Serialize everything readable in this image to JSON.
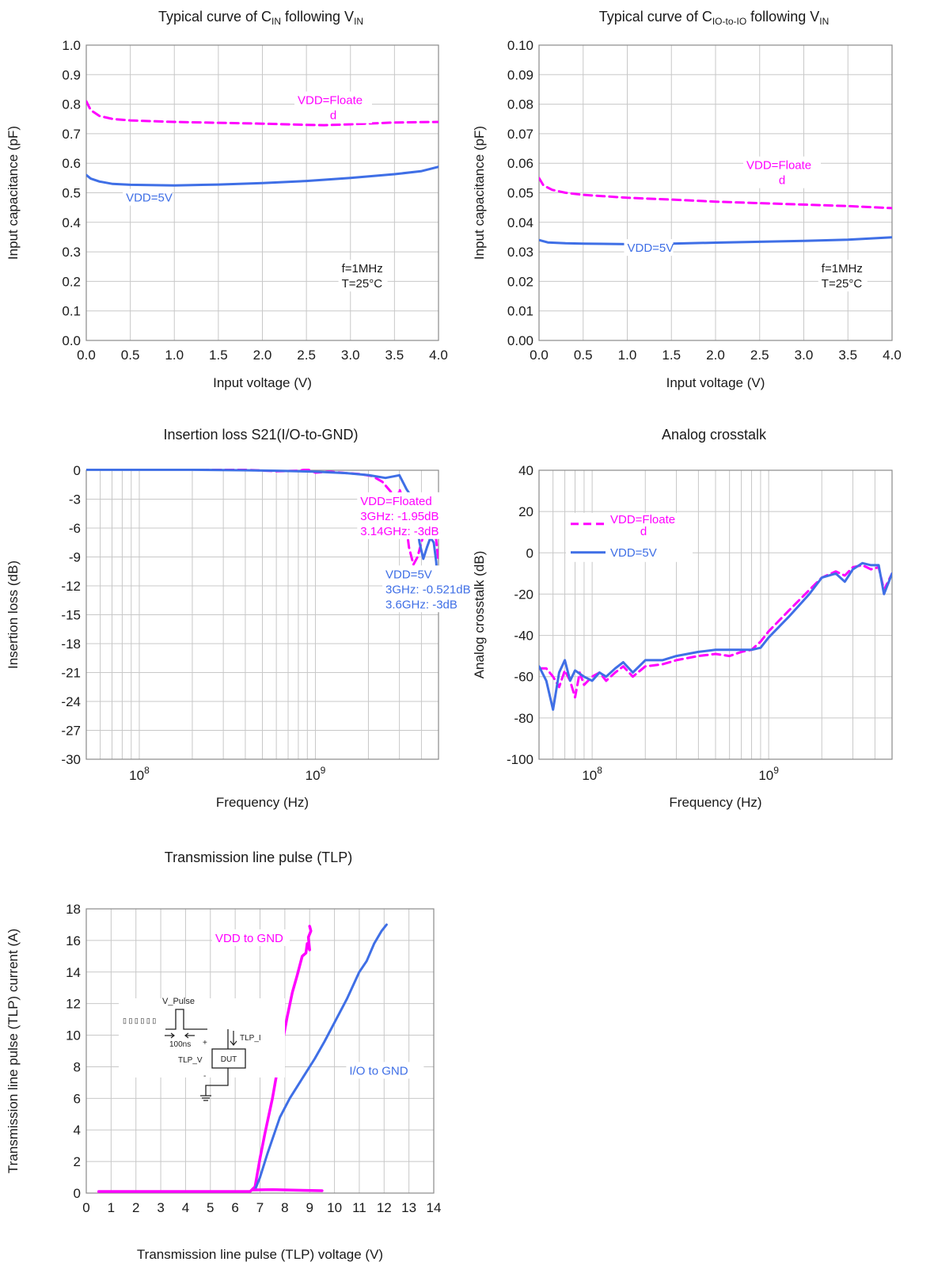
{
  "colors": {
    "magenta": "#ff00ff",
    "blue": "#3f6fe6",
    "grid": "#c8c8c8",
    "axis": "#8a8a8a",
    "text": "#1a1a1a"
  },
  "chart_data": [
    {
      "type": "line",
      "title": "Typical curve of  C",
      "title_sub": "IN",
      "title_tail": " following V",
      "title_sub2": "IN",
      "xlabel": "Input voltage (V)",
      "ylabel": "Input capacitance (pF)",
      "xlim": [
        0,
        4
      ],
      "ylim": [
        0,
        1
      ],
      "xticks": [
        "0.0",
        "0.5",
        "1.0",
        "1.5",
        "2.0",
        "2.5",
        "3.0",
        "3.5",
        "4.0"
      ],
      "yticks": [
        "0.0",
        "0.1",
        "0.2",
        "0.3",
        "0.4",
        "0.5",
        "0.6",
        "0.7",
        "0.8",
        "0.9",
        "1.0"
      ],
      "grid": true,
      "series": [
        {
          "name": "VDD=Floated",
          "color": "magenta",
          "dash": true,
          "x": [
            0,
            0.05,
            0.15,
            0.3,
            0.5,
            1.0,
            1.5,
            2.0,
            2.5,
            2.7,
            3.0,
            3.5,
            4.0
          ],
          "y": [
            0.81,
            0.78,
            0.76,
            0.75,
            0.745,
            0.74,
            0.737,
            0.734,
            0.73,
            0.729,
            0.732,
            0.738,
            0.74
          ]
        },
        {
          "name": "VDD=5V",
          "color": "blue",
          "dash": false,
          "x": [
            0,
            0.05,
            0.15,
            0.3,
            0.5,
            1.0,
            1.5,
            2.0,
            2.5,
            3.0,
            3.5,
            3.8,
            4.0
          ],
          "y": [
            0.56,
            0.548,
            0.538,
            0.53,
            0.527,
            0.525,
            0.528,
            0.533,
            0.54,
            0.55,
            0.563,
            0.573,
            0.588
          ]
        }
      ],
      "annotations": [
        {
          "lines": [
            "VDD=Floate",
            "d"
          ],
          "color": "magenta",
          "x": 2.4,
          "y": 0.8
        },
        {
          "lines": [
            "VDD=5V"
          ],
          "color": "blue",
          "x": 0.45,
          "y": 0.47
        },
        {
          "lines": [
            "f=1MHz",
            "T=25°C"
          ],
          "color": "text",
          "x": 2.9,
          "y": 0.23
        }
      ]
    },
    {
      "type": "line",
      "title": "Typical curve of C",
      "title_sub": "IO-to-IO",
      "title_tail": " following V",
      "title_sub2": "IN",
      "xlabel": "Input voltage (V)",
      "ylabel": "Input capacitance (pF)",
      "xlim": [
        0,
        4
      ],
      "ylim": [
        0,
        0.1
      ],
      "xticks": [
        "0.0",
        "0.5",
        "1.0",
        "1.5",
        "2.0",
        "2.5",
        "3.0",
        "3.5",
        "4.0"
      ],
      "yticks": [
        "0.00",
        "0.01",
        "0.02",
        "0.03",
        "0.04",
        "0.05",
        "0.06",
        "0.07",
        "0.08",
        "0.09",
        "0.10"
      ],
      "grid": true,
      "series": [
        {
          "name": "VDD=Floated",
          "color": "magenta",
          "dash": true,
          "x": [
            0,
            0.05,
            0.15,
            0.3,
            0.5,
            1.0,
            1.5,
            2.0,
            2.5,
            3.0,
            3.5,
            4.0
          ],
          "y": [
            0.055,
            0.0525,
            0.051,
            0.05,
            0.0493,
            0.0483,
            0.0477,
            0.047,
            0.0465,
            0.046,
            0.0455,
            0.0448
          ]
        },
        {
          "name": "VDD=5V",
          "color": "blue",
          "dash": false,
          "x": [
            0,
            0.1,
            0.3,
            0.5,
            1.0,
            1.5,
            2.0,
            2.5,
            3.0,
            3.5,
            4.0
          ],
          "y": [
            0.034,
            0.0332,
            0.0329,
            0.0328,
            0.0326,
            0.0328,
            0.0331,
            0.0334,
            0.0337,
            0.0341,
            0.0349
          ]
        }
      ],
      "annotations": [
        {
          "lines": [
            "VDD=Floate",
            "d"
          ],
          "color": "magenta",
          "x": 2.35,
          "y": 0.058
        },
        {
          "lines": [
            "VDD=5V"
          ],
          "color": "blue",
          "x": 1.0,
          "y": 0.03
        },
        {
          "lines": [
            "f=1MHz",
            "T=25°C"
          ],
          "color": "text",
          "x": 3.2,
          "y": 0.023
        }
      ]
    },
    {
      "type": "line",
      "title": "Insertion loss S21(I/O-to-GND)",
      "xlabel": "Frequency (Hz)",
      "ylabel": "Insertion loss (dB)",
      "xscale": "log",
      "xlim": [
        50000000.0,
        5000000000.0
      ],
      "ylim": [
        -30,
        0
      ],
      "xticks_log": [
        {
          "value": 100000000.0,
          "base": "10",
          "exp": "8"
        },
        {
          "value": 1000000000.0,
          "base": "10",
          "exp": "9"
        }
      ],
      "yticks": [
        "0",
        "-3",
        "-6",
        "-9",
        "-12",
        "-15",
        "-18",
        "-21",
        "-24",
        "-27",
        "-30"
      ],
      "yvalues": [
        0,
        -3,
        -6,
        -9,
        -12,
        -15,
        -18,
        -21,
        -24,
        -27,
        -30
      ],
      "grid": true,
      "series": [
        {
          "name": "VDD=Floated",
          "color": "magenta",
          "dash": true,
          "x": [
            50000000.0,
            100000000.0,
            200000000.0,
            400000000.0,
            600000000.0,
            800000000.0,
            900000000.0,
            1000000000.0,
            1200000000.0,
            1500000000.0,
            1800000000.0,
            2100000000.0,
            2400000000.0,
            2700000000.0,
            2900000000.0,
            3000000000.0,
            3140000000.0,
            3400000000.0,
            3600000000.0,
            3800000000.0,
            4000000000.0,
            4200000000.0,
            4400000000.0,
            4600000000.0,
            4800000000.0,
            5000000000.0
          ],
          "y": [
            0.1,
            0.1,
            0.1,
            0.05,
            -0.1,
            -0.05,
            0.1,
            -0.25,
            -0.15,
            -0.3,
            -0.4,
            -0.6,
            -1.2,
            -2.3,
            -3.5,
            -1.95,
            -3,
            -8.0,
            -9.8,
            -9.0,
            -7.5,
            -6.0,
            -4.2,
            -4.0,
            -6.5,
            -9.5
          ]
        },
        {
          "name": "VDD=5V",
          "color": "blue",
          "dash": false,
          "x": [
            50000000.0,
            100000000.0,
            200000000.0,
            400000000.0,
            600000000.0,
            800000000.0,
            1000000000.0,
            1500000000.0,
            2000000000.0,
            2500000000.0,
            3000000000.0,
            3300000000.0,
            3600000000.0,
            3900000000.0,
            4100000000.0,
            4300000000.0,
            4500000000.0,
            4700000000.0,
            4850000000.0,
            5000000000.0
          ],
          "y": [
            0.05,
            0.05,
            0.05,
            0.0,
            -0.05,
            -0.1,
            -0.15,
            -0.3,
            -0.5,
            -0.8,
            -0.521,
            -2.0,
            -3.0,
            -7.5,
            -9.2,
            -8.0,
            -7.0,
            -7.5,
            -9.5,
            -13.0
          ]
        }
      ],
      "annotations": [
        {
          "lines": [
            "VDD=Floated",
            "3GHz: -1.95dB",
            "3.14GHz: -3dB"
          ],
          "color": "magenta",
          "x": 1800000000.0,
          "y": -3.6
        },
        {
          "lines": [
            "VDD=5V",
            "3GHz: -0.521dB",
            "3.6GHz: -3dB"
          ],
          "color": "blue",
          "x": 2500000000.0,
          "y": -11.2
        }
      ]
    },
    {
      "type": "line",
      "title": "Analog crosstalk",
      "xlabel": "Frequency (Hz)",
      "ylabel": "Analog crosstalk (dB)",
      "xscale": "log",
      "xlim": [
        50000000.0,
        5000000000.0
      ],
      "ylim": [
        -100,
        40
      ],
      "xticks_log": [
        {
          "value": 100000000.0,
          "base": "10",
          "exp": "8"
        },
        {
          "value": 1000000000.0,
          "base": "10",
          "exp": "9"
        }
      ],
      "yticks": [
        "40",
        "20",
        "0",
        "-20",
        "-40",
        "-60",
        "-80",
        "-100"
      ],
      "yvalues": [
        40,
        20,
        0,
        -20,
        -40,
        -60,
        -80,
        -100
      ],
      "grid": true,
      "legend": {
        "position": "upper-left",
        "entries": [
          {
            "lines": [
              "VDD=Floate",
              "d"
            ],
            "color": "magenta",
            "dash": true
          },
          {
            "lines": [
              "VDD=5V"
            ],
            "color": "blue",
            "dash": false
          }
        ]
      },
      "series": [
        {
          "name": "VDD=Floated",
          "color": "magenta",
          "dash": true,
          "x": [
            50000000.0,
            55000000.0,
            60000000.0,
            65000000.0,
            70000000.0,
            75000000.0,
            80000000.0,
            85000000.0,
            90000000.0,
            100000000.0,
            110000000.0,
            120000000.0,
            135000000.0,
            150000000.0,
            170000000.0,
            200000000.0,
            250000000.0,
            300000000.0,
            400000000.0,
            500000000.0,
            600000000.0,
            700000000.0,
            800000000.0,
            900000000.0,
            1000000000.0,
            1300000000.0,
            1700000000.0,
            2000000000.0,
            2400000000.0,
            2700000000.0,
            3000000000.0,
            3400000000.0,
            3800000000.0,
            4200000000.0,
            4500000000.0,
            5000000000.0
          ],
          "y": [
            -56,
            -56,
            -60,
            -65,
            -57,
            -62,
            -70,
            -58,
            -64,
            -60,
            -58,
            -62,
            -58,
            -55,
            -60,
            -55,
            -54,
            -52,
            -50,
            -49,
            -50,
            -48,
            -47,
            -43,
            -38,
            -28,
            -18,
            -12,
            -9,
            -11,
            -7,
            -6,
            -8,
            -7,
            -18,
            -10
          ]
        },
        {
          "name": "VDD=5V",
          "color": "blue",
          "dash": false,
          "x": [
            50000000.0,
            55000000.0,
            60000000.0,
            65000000.0,
            70000000.0,
            75000000.0,
            80000000.0,
            90000000.0,
            100000000.0,
            110000000.0,
            120000000.0,
            135000000.0,
            150000000.0,
            170000000.0,
            200000000.0,
            250000000.0,
            300000000.0,
            400000000.0,
            500000000.0,
            600000000.0,
            700000000.0,
            800000000.0,
            900000000.0,
            1000000000.0,
            1300000000.0,
            1700000000.0,
            2000000000.0,
            2400000000.0,
            2700000000.0,
            3000000000.0,
            3400000000.0,
            3800000000.0,
            4200000000.0,
            4500000000.0,
            5000000000.0
          ],
          "y": [
            -55,
            -62,
            -76,
            -58,
            -52,
            -62,
            -57,
            -60,
            -62,
            -58,
            -60,
            -56,
            -53,
            -58,
            -52,
            -52,
            -50,
            -48,
            -47,
            -47,
            -47,
            -47,
            -46,
            -41,
            -31,
            -20,
            -12,
            -10,
            -14,
            -8,
            -5,
            -6,
            -6,
            -20,
            -10
          ]
        }
      ]
    },
    {
      "type": "line",
      "title": "Transmission line pulse (TLP)",
      "xlabel": "Transmission line pulse  (TLP) voltage (V)",
      "ylabel": "Transmission line pulse (TLP) current (A)",
      "xlim": [
        0,
        14
      ],
      "ylim": [
        0,
        18
      ],
      "xticks": [
        "0",
        "1",
        "2",
        "3",
        "4",
        "5",
        "6",
        "7",
        "8",
        "9",
        "10",
        "11",
        "12",
        "13",
        "14"
      ],
      "yticks": [
        "0",
        "2",
        "4",
        "6",
        "8",
        "10",
        "12",
        "14",
        "16",
        "18"
      ],
      "grid": true,
      "series": [
        {
          "name": "VDD to GND",
          "color": "magenta",
          "dash": false,
          "x": [
            0.5,
            3,
            6.6,
            6.8,
            7.0,
            7.2,
            7.5,
            7.7,
            7.9,
            8.1,
            8.3,
            8.5,
            8.7,
            8.85,
            8.9,
            9.0,
            8.95,
            9.05,
            9.0
          ],
          "y": [
            0.1,
            0.1,
            0.1,
            0.4,
            2.2,
            3.8,
            6.0,
            7.8,
            9.5,
            11.2,
            12.7,
            13.8,
            15.0,
            15.2,
            15.8,
            15.4,
            16.2,
            16.6,
            16.9
          ]
        },
        {
          "name": "I/O to GND",
          "color": "blue",
          "dash": false,
          "x": [
            6.8,
            7.0,
            7.3,
            7.8,
            8.2,
            8.8,
            9.2,
            9.6,
            10.0,
            10.5,
            11.0,
            11.3,
            11.6,
            11.9,
            12.1
          ],
          "y": [
            0.2,
            1.0,
            2.5,
            4.8,
            6.0,
            7.5,
            8.5,
            9.6,
            10.8,
            12.3,
            14.0,
            14.7,
            15.8,
            16.6,
            17.0
          ]
        },
        {
          "name": "",
          "color": "magenta",
          "dash": false,
          "x": [
            6.7,
            7.5,
            8.5,
            9.5
          ],
          "y": [
            0.2,
            0.22,
            0.18,
            0.15
          ]
        }
      ],
      "annotations": [
        {
          "lines": [
            "VDD to GND"
          ],
          "color": "magenta",
          "x": 5.2,
          "y": 15.9
        },
        {
          "lines": [
            "I/O to GND"
          ],
          "color": "blue",
          "x": 10.6,
          "y": 7.5
        }
      ],
      "inset": {
        "labels": {
          "pulse": "V_Pulse",
          "width": "100ns",
          "plus": "+",
          "minus": "-",
          "voltage": "TLP_V",
          "current": "TLP_I",
          "device": "DUT"
        },
        "marks": "▯ ▯ ▯ ▯ ▯ ▯"
      }
    }
  ]
}
